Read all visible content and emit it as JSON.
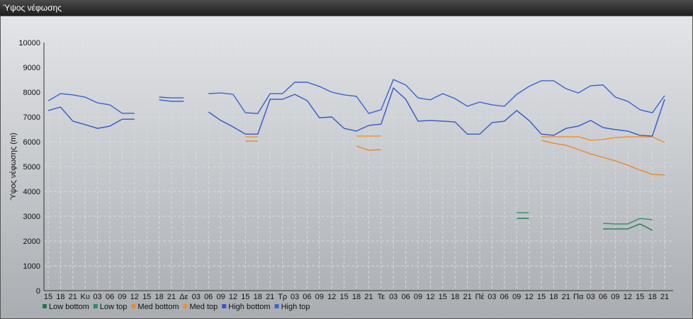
{
  "window_title": "Ύψος νέφωσης",
  "chart_data": {
    "type": "line",
    "y_label": "Ύψος νέφωσης (m)",
    "categories": [
      "15",
      "18",
      "21",
      "Κυ",
      "03",
      "06",
      "09",
      "12",
      "15",
      "18",
      "21",
      "Δε",
      "03",
      "06",
      "09",
      "12",
      "15",
      "18",
      "21",
      "Τρ",
      "03",
      "06",
      "09",
      "12",
      "15",
      "18",
      "21",
      "Τε",
      "03",
      "06",
      "09",
      "12",
      "15",
      "18",
      "21",
      "Πέ",
      "03",
      "06",
      "09",
      "12",
      "15",
      "18",
      "21",
      "Πα",
      "03",
      "06",
      "09",
      "12",
      "15",
      "18",
      "21"
    ],
    "ylim": [
      0,
      10000
    ],
    "yticks": [
      0,
      1000,
      2000,
      3000,
      4000,
      5000,
      6000,
      7000,
      8000,
      9000,
      10000
    ],
    "grid": true,
    "series": [
      {
        "name": "Low bottom",
        "color": "#1f7a4d",
        "values": [
          null,
          null,
          null,
          null,
          null,
          null,
          null,
          null,
          null,
          null,
          null,
          null,
          null,
          null,
          null,
          null,
          null,
          null,
          null,
          null,
          null,
          null,
          null,
          null,
          null,
          null,
          null,
          null,
          null,
          null,
          null,
          null,
          null,
          null,
          null,
          null,
          null,
          null,
          2910,
          2910,
          null,
          null,
          null,
          null,
          null,
          2490,
          2490,
          2490,
          2690,
          2430,
          null
        ]
      },
      {
        "name": "Low top",
        "color": "#2e8f63",
        "values": [
          null,
          null,
          null,
          null,
          null,
          null,
          null,
          null,
          null,
          null,
          null,
          null,
          null,
          null,
          null,
          null,
          null,
          null,
          null,
          null,
          null,
          null,
          null,
          null,
          null,
          null,
          null,
          null,
          null,
          null,
          null,
          null,
          null,
          null,
          null,
          null,
          null,
          null,
          3140,
          3140,
          null,
          null,
          null,
          null,
          null,
          2710,
          2690,
          2690,
          2910,
          2860,
          null
        ]
      },
      {
        "name": "Med bottom",
        "color": "#e88a2a",
        "values": [
          null,
          null,
          null,
          null,
          null,
          null,
          null,
          null,
          null,
          null,
          null,
          null,
          null,
          null,
          null,
          null,
          6030,
          6030,
          null,
          null,
          null,
          null,
          null,
          null,
          null,
          5830,
          5660,
          5690,
          null,
          null,
          null,
          null,
          null,
          null,
          null,
          null,
          null,
          null,
          null,
          null,
          6060,
          5940,
          5860,
          5690,
          5510,
          5370,
          5230,
          5060,
          4860,
          4690,
          4660
        ]
      },
      {
        "name": "Med top",
        "color": "#f0922e",
        "values": [
          null,
          null,
          null,
          null,
          null,
          null,
          null,
          null,
          null,
          null,
          null,
          null,
          null,
          null,
          null,
          null,
          6200,
          6200,
          null,
          null,
          null,
          null,
          null,
          null,
          null,
          6230,
          6230,
          6230,
          null,
          null,
          null,
          null,
          null,
          null,
          null,
          null,
          null,
          null,
          null,
          null,
          6200,
          6200,
          6200,
          6200,
          6060,
          6090,
          6170,
          6200,
          6200,
          6200,
          5970
        ]
      },
      {
        "name": "High bottom",
        "color": "#3558c8",
        "values": [
          7260,
          7400,
          6830,
          6690,
          6540,
          6630,
          6910,
          6910,
          null,
          7690,
          7630,
          7630,
          null,
          7200,
          6860,
          6600,
          6310,
          6310,
          7710,
          7710,
          7910,
          7660,
          6970,
          7000,
          6540,
          6430,
          6660,
          6710,
          8170,
          7710,
          6830,
          6860,
          6830,
          6800,
          6310,
          6310,
          6770,
          6830,
          7260,
          6860,
          6310,
          6260,
          6540,
          6630,
          6860,
          6570,
          6490,
          6430,
          6260,
          6230,
          7710
        ]
      },
      {
        "name": "High top",
        "color": "#3b62d0",
        "values": [
          7650,
          7940,
          7890,
          7800,
          7570,
          7490,
          7150,
          7150,
          null,
          7800,
          7770,
          7770,
          null,
          7940,
          7970,
          7910,
          7170,
          7140,
          7940,
          7940,
          8400,
          8400,
          8230,
          8000,
          7890,
          7830,
          7140,
          7290,
          8510,
          8290,
          7770,
          7690,
          7940,
          7740,
          7430,
          7600,
          7490,
          7430,
          7910,
          8230,
          8460,
          8460,
          8140,
          7970,
          8260,
          8290,
          7800,
          7630,
          7290,
          7170,
          7860
        ]
      }
    ]
  }
}
